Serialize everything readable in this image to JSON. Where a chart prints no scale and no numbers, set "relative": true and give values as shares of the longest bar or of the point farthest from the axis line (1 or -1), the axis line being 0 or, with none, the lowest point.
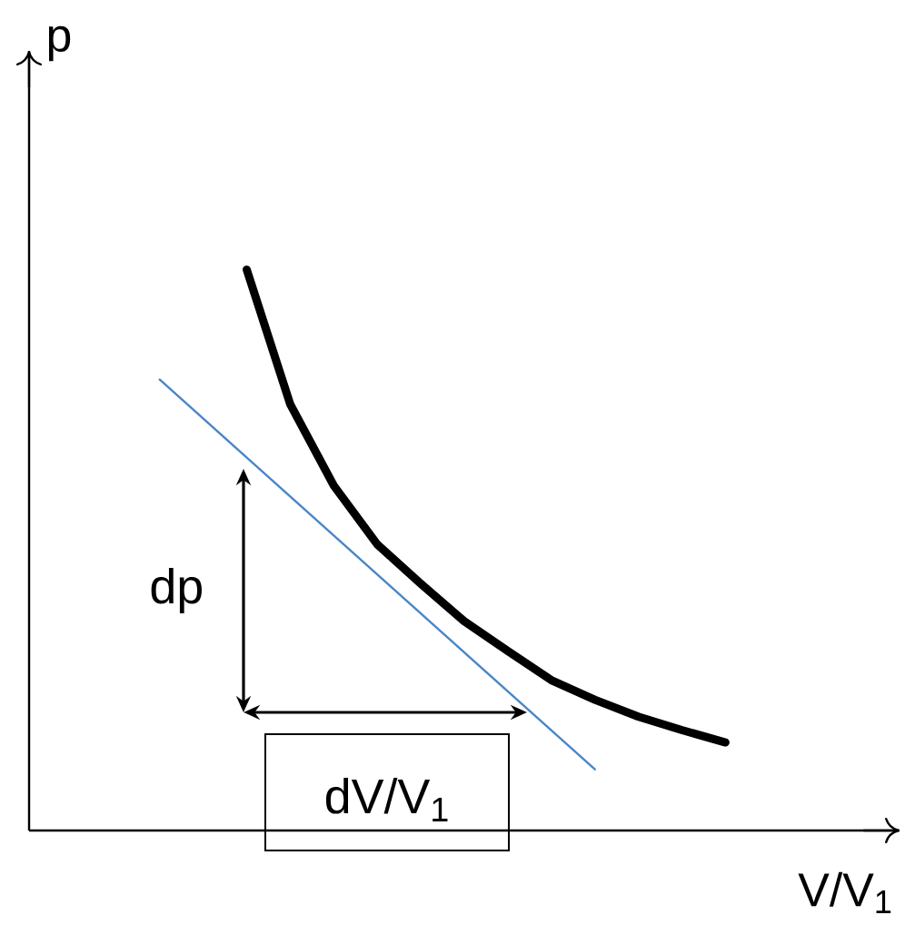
{
  "chart_data": {
    "type": "line",
    "relative": true,
    "xlabel": "V/V$_{1}$",
    "ylabel": "p",
    "categories": [
      null,
      null,
      null,
      null,
      null,
      null,
      null,
      null,
      null,
      null,
      null,
      null,
      null,
      null,
      null,
      null,
      null,
      null,
      null,
      null,
      null
    ],
    "series": [
      {
        "color": "#000000",
        "values": [
          null,
          null,
          null,
          null,
          null,
          1.0,
          0.76,
          0.615,
          0.51,
          0.44,
          0.373,
          0.32,
          0.268,
          0.233,
          0.203,
          0.179,
          0.157,
          null,
          null,
          null,
          null
        ]
      },
      {
        "color": "#4a86c8",
        "values": [
          null,
          null,
          null,
          0.804,
          null,
          null,
          null,
          null,
          null,
          null,
          null,
          null,
          null,
          0.109,
          null,
          null,
          null,
          null,
          null,
          null,
          null
        ]
      }
    ],
    "annotations": [
      "dp",
      "dV/V$_{1}$"
    ]
  }
}
